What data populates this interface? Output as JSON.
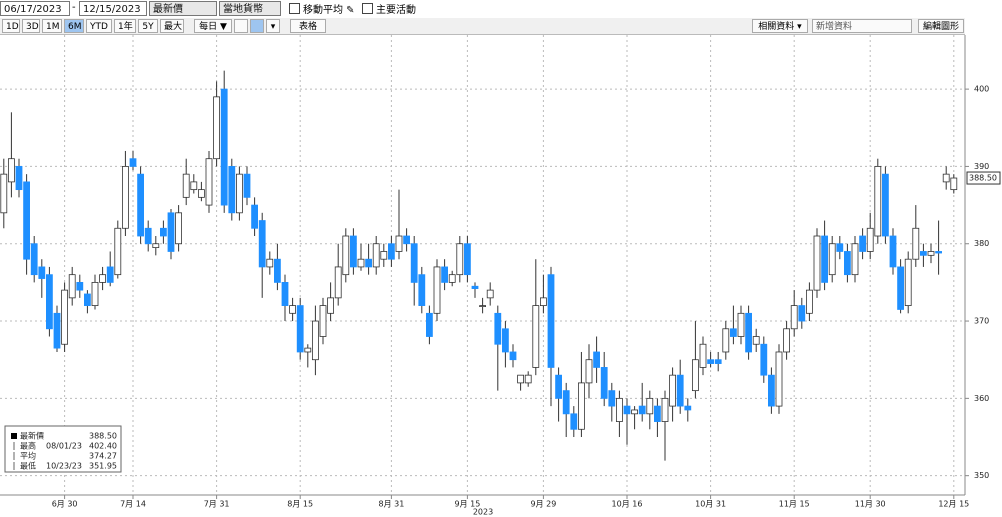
{
  "toolbar": {
    "start_date": "06/17/2023",
    "separator": "-",
    "end_date": "12/15/2023",
    "price_field": "最新價",
    "currency": "當地貨幣",
    "moving_average": "移動平均",
    "key_events": "主要活動",
    "periods": [
      "1D",
      "3D",
      "1M",
      "6M",
      "YTD",
      "1年",
      "5Y",
      "最大"
    ],
    "active_period": "6M",
    "frequency": "每日 ▼",
    "table": "表格",
    "related_data": "相關資料 ▾",
    "add_data": "新增資料",
    "edit_chart": "編輯圖形"
  },
  "chart_data": {
    "type": "candlestick",
    "categories": [
      null,
      null,
      null,
      null,
      null,
      null,
      null,
      null,
      "6月 30",
      null,
      null,
      null,
      null,
      null,
      null,
      null,
      null,
      "7月 14",
      null,
      null,
      null,
      null,
      null,
      null,
      null,
      null,
      null,
      null,
      "7月 31",
      null,
      null,
      null,
      null,
      null,
      null,
      null,
      null,
      null,
      null,
      "8月 15",
      null,
      null,
      null,
      null,
      null,
      null,
      null,
      null,
      null,
      null,
      null,
      "8月 31",
      null,
      null,
      null,
      null,
      null,
      null,
      null,
      null,
      null,
      "9月 15",
      null,
      null,
      null,
      null,
      null,
      null,
      null,
      null,
      null,
      "9月 29",
      null,
      null,
      null,
      null,
      null,
      null,
      null,
      null,
      null,
      null,
      "10月 16",
      null,
      null,
      null,
      null,
      null,
      null,
      null,
      null,
      null,
      null,
      "10月 31",
      null,
      null,
      null,
      null,
      null,
      null,
      null,
      null,
      null,
      null,
      "11月 15",
      null,
      null,
      null,
      null,
      null,
      null,
      null,
      null,
      null,
      "11月 30",
      null,
      null,
      null,
      null,
      null,
      null,
      null,
      null,
      null,
      null,
      "12月 15"
    ],
    "x_year": "2023",
    "candles": [
      {
        "o": 384,
        "h": 391,
        "l": 382,
        "c": 389
      },
      {
        "o": 388,
        "h": 397,
        "l": 386,
        "c": 391
      },
      {
        "o": 390,
        "h": 391,
        "l": 386,
        "c": 387
      },
      {
        "o": 388,
        "h": 389,
        "l": 376,
        "c": 378
      },
      {
        "o": 380,
        "h": 381,
        "l": 375,
        "c": 376
      },
      {
        "o": 377,
        "h": 378,
        "l": 373,
        "c": 375.5
      },
      {
        "o": 376,
        "h": 377,
        "l": 368,
        "c": 369
      },
      {
        "o": 371,
        "h": 372,
        "l": 366,
        "c": 366.5
      },
      {
        "o": 367,
        "h": 375,
        "l": 366,
        "c": 374
      },
      {
        "o": 373,
        "h": 377,
        "l": 372,
        "c": 376
      },
      {
        "o": 375,
        "h": 376,
        "l": 373,
        "c": 374
      },
      {
        "o": 373.5,
        "h": 374,
        "l": 371,
        "c": 372
      },
      {
        "o": 372,
        "h": 376,
        "l": 371.5,
        "c": 375
      },
      {
        "o": 375,
        "h": 377,
        "l": 374,
        "c": 376
      },
      {
        "o": 377,
        "h": 379,
        "l": 374.5,
        "c": 375
      },
      {
        "o": 376,
        "h": 383,
        "l": 375.5,
        "c": 382
      },
      {
        "o": 382,
        "h": 392,
        "l": 381,
        "c": 390
      },
      {
        "o": 391,
        "h": 392,
        "l": 389.5,
        "c": 390
      },
      {
        "o": 389,
        "h": 390,
        "l": 380,
        "c": 381
      },
      {
        "o": 382,
        "h": 383,
        "l": 379,
        "c": 380
      },
      {
        "o": 379.5,
        "h": 381,
        "l": 378.5,
        "c": 380
      },
      {
        "o": 382,
        "h": 383,
        "l": 380,
        "c": 381
      },
      {
        "o": 384,
        "h": 384.5,
        "l": 378,
        "c": 379
      },
      {
        "o": 380,
        "h": 385,
        "l": 379,
        "c": 384
      },
      {
        "o": 386,
        "h": 391,
        "l": 385,
        "c": 389
      },
      {
        "o": 387,
        "h": 389,
        "l": 386.5,
        "c": 388
      },
      {
        "o": 386,
        "h": 388,
        "l": 385.5,
        "c": 387
      },
      {
        "o": 385,
        "h": 392,
        "l": 384,
        "c": 391
      },
      {
        "o": 391,
        "h": 401,
        "l": 390,
        "c": 399
      },
      {
        "o": 400,
        "h": 402.4,
        "l": 384,
        "c": 385
      },
      {
        "o": 390,
        "h": 391,
        "l": 383,
        "c": 384
      },
      {
        "o": 384,
        "h": 390,
        "l": 383,
        "c": 389
      },
      {
        "o": 389,
        "h": 390,
        "l": 385,
        "c": 386
      },
      {
        "o": 385,
        "h": 386,
        "l": 381,
        "c": 382
      },
      {
        "o": 383,
        "h": 384,
        "l": 373,
        "c": 377
      },
      {
        "o": 377,
        "h": 379,
        "l": 376,
        "c": 378
      },
      {
        "o": 378,
        "h": 380,
        "l": 374,
        "c": 375
      },
      {
        "o": 375,
        "h": 376,
        "l": 370,
        "c": 372
      },
      {
        "o": 371,
        "h": 373,
        "l": 370,
        "c": 372
      },
      {
        "o": 372,
        "h": 373,
        "l": 365,
        "c": 366
      },
      {
        "o": 366,
        "h": 367,
        "l": 364,
        "c": 366.5
      },
      {
        "o": 365,
        "h": 372,
        "l": 363,
        "c": 370
      },
      {
        "o": 368,
        "h": 373,
        "l": 367,
        "c": 372
      },
      {
        "o": 371,
        "h": 375,
        "l": 370,
        "c": 373
      },
      {
        "o": 373,
        "h": 380,
        "l": 372,
        "c": 377
      },
      {
        "o": 376,
        "h": 382,
        "l": 375,
        "c": 381
      },
      {
        "o": 381,
        "h": 382,
        "l": 376,
        "c": 377
      },
      {
        "o": 377,
        "h": 380,
        "l": 376.5,
        "c": 378
      },
      {
        "o": 378,
        "h": 380,
        "l": 376,
        "c": 377
      },
      {
        "o": 377,
        "h": 381,
        "l": 376,
        "c": 380
      },
      {
        "o": 378,
        "h": 380,
        "l": 377,
        "c": 379
      },
      {
        "o": 380,
        "h": 381,
        "l": 377,
        "c": 378
      },
      {
        "o": 379,
        "h": 387,
        "l": 378,
        "c": 381
      },
      {
        "o": 381,
        "h": 382,
        "l": 379,
        "c": 380
      },
      {
        "o": 380,
        "h": 381,
        "l": 372,
        "c": 375
      },
      {
        "o": 376,
        "h": 377,
        "l": 371,
        "c": 372
      },
      {
        "o": 371,
        "h": 372,
        "l": 367,
        "c": 368
      },
      {
        "o": 371,
        "h": 378,
        "l": 370,
        "c": 377
      },
      {
        "o": 377,
        "h": 378,
        "l": 374,
        "c": 375
      },
      {
        "o": 375,
        "h": 376.5,
        "l": 374.5,
        "c": 376
      },
      {
        "o": 376,
        "h": 381,
        "l": 375,
        "c": 380
      },
      {
        "o": 380,
        "h": 381,
        "l": 375,
        "c": 376
      },
      {
        "o": 374.5,
        "h": 375,
        "l": 373,
        "c": 374.2
      },
      {
        "o": 372,
        "h": 373,
        "l": 371,
        "c": 372
      },
      {
        "o": 373,
        "h": 375,
        "l": 372,
        "c": 374
      },
      {
        "o": 371,
        "h": 372,
        "l": 361,
        "c": 367
      },
      {
        "o": 369,
        "h": 370,
        "l": 364,
        "c": 366
      },
      {
        "o": 366,
        "h": 367,
        "l": 364,
        "c": 365
      },
      {
        "o": 362,
        "h": 363,
        "l": 361,
        "c": 363
      },
      {
        "o": 362,
        "h": 363.5,
        "l": 361.5,
        "c": 363
      },
      {
        "o": 364,
        "h": 378,
        "l": 363,
        "c": 372
      },
      {
        "o": 372,
        "h": 376,
        "l": 371,
        "c": 373
      },
      {
        "o": 376,
        "h": 377,
        "l": 359,
        "c": 364
      },
      {
        "o": 363,
        "h": 364,
        "l": 357,
        "c": 360
      },
      {
        "o": 361,
        "h": 362,
        "l": 355,
        "c": 358
      },
      {
        "o": 358,
        "h": 359,
        "l": 355,
        "c": 356
      },
      {
        "o": 356,
        "h": 366,
        "l": 355,
        "c": 362
      },
      {
        "o": 362,
        "h": 367,
        "l": 360,
        "c": 365
      },
      {
        "o": 366,
        "h": 368,
        "l": 362,
        "c": 364
      },
      {
        "o": 364,
        "h": 366,
        "l": 359,
        "c": 360
      },
      {
        "o": 361,
        "h": 362,
        "l": 357,
        "c": 359
      },
      {
        "o": 357,
        "h": 361,
        "l": 355,
        "c": 360
      },
      {
        "o": 359,
        "h": 360,
        "l": 354,
        "c": 358
      },
      {
        "o": 358,
        "h": 359,
        "l": 356,
        "c": 358.5
      },
      {
        "o": 359,
        "h": 362,
        "l": 357,
        "c": 358
      },
      {
        "o": 358,
        "h": 361,
        "l": 356,
        "c": 360
      },
      {
        "o": 359,
        "h": 360,
        "l": 355,
        "c": 357
      },
      {
        "o": 357,
        "h": 361,
        "l": 351.95,
        "c": 360
      },
      {
        "o": 359,
        "h": 364,
        "l": 357,
        "c": 363
      },
      {
        "o": 363,
        "h": 365,
        "l": 358,
        "c": 359
      },
      {
        "o": 359,
        "h": 360,
        "l": 357,
        "c": 358.5
      },
      {
        "o": 361,
        "h": 370,
        "l": 360,
        "c": 365
      },
      {
        "o": 364,
        "h": 368,
        "l": 363,
        "c": 367
      },
      {
        "o": 365,
        "h": 366,
        "l": 364,
        "c": 364.5
      },
      {
        "o": 365,
        "h": 366,
        "l": 363.5,
        "c": 364.5
      },
      {
        "o": 366,
        "h": 370,
        "l": 365,
        "c": 369
      },
      {
        "o": 369,
        "h": 372,
        "l": 367,
        "c": 368
      },
      {
        "o": 368,
        "h": 372,
        "l": 367,
        "c": 371
      },
      {
        "o": 371,
        "h": 372,
        "l": 365,
        "c": 366
      },
      {
        "o": 367,
        "h": 369,
        "l": 366,
        "c": 368
      },
      {
        "o": 367,
        "h": 368,
        "l": 362,
        "c": 363
      },
      {
        "o": 363,
        "h": 364,
        "l": 358,
        "c": 359
      },
      {
        "o": 359,
        "h": 367,
        "l": 358,
        "c": 366
      },
      {
        "o": 366,
        "h": 370,
        "l": 365,
        "c": 369
      },
      {
        "o": 369,
        "h": 374,
        "l": 368,
        "c": 372
      },
      {
        "o": 372,
        "h": 373,
        "l": 369,
        "c": 370
      },
      {
        "o": 371,
        "h": 375,
        "l": 370,
        "c": 374
      },
      {
        "o": 374,
        "h": 382,
        "l": 373,
        "c": 381
      },
      {
        "o": 381,
        "h": 383,
        "l": 374,
        "c": 375
      },
      {
        "o": 376,
        "h": 381,
        "l": 375,
        "c": 380
      },
      {
        "o": 380,
        "h": 381,
        "l": 378,
        "c": 379
      },
      {
        "o": 379,
        "h": 380,
        "l": 375,
        "c": 376
      },
      {
        "o": 376,
        "h": 381,
        "l": 375,
        "c": 380
      },
      {
        "o": 381,
        "h": 382,
        "l": 378,
        "c": 379
      },
      {
        "o": 379,
        "h": 384,
        "l": 378,
        "c": 382
      },
      {
        "o": 381,
        "h": 391,
        "l": 380,
        "c": 390
      },
      {
        "o": 389,
        "h": 390,
        "l": 380,
        "c": 381
      },
      {
        "o": 381,
        "h": 382,
        "l": 376,
        "c": 377
      },
      {
        "o": 377,
        "h": 378,
        "l": 371,
        "c": 371.5
      },
      {
        "o": 372,
        "h": 379,
        "l": 371,
        "c": 378
      },
      {
        "o": 378,
        "h": 385,
        "l": 377,
        "c": 382
      },
      {
        "o": 379,
        "h": 380,
        "l": 377,
        "c": 378.5
      },
      {
        "o": 378.5,
        "h": 380,
        "l": 377.5,
        "c": 379
      },
      {
        "o": 379,
        "h": 383,
        "l": 376,
        "c": 378.8
      },
      {
        "o": 388,
        "h": 390,
        "l": 387,
        "c": 389
      },
      {
        "o": 387,
        "h": 389,
        "l": 386.5,
        "c": 388.5
      }
    ],
    "up_color": "#ffffff",
    "down_color": "#1e8fff",
    "ylim": [
      347.5,
      407
    ],
    "yticks": [
      350,
      360,
      370,
      380,
      390,
      400
    ],
    "grid": true,
    "last_price": {
      "value": 388.5,
      "label": "388.50"
    },
    "stats_box": [
      {
        "name": "最新價",
        "date": "",
        "value": "388.50"
      },
      {
        "name": "最高",
        "date": "08/01/23",
        "value": "402.40"
      },
      {
        "name": "平均",
        "date": "",
        "value": "374.27"
      },
      {
        "name": "最低",
        "date": "10/23/23",
        "value": "351.95"
      }
    ]
  }
}
